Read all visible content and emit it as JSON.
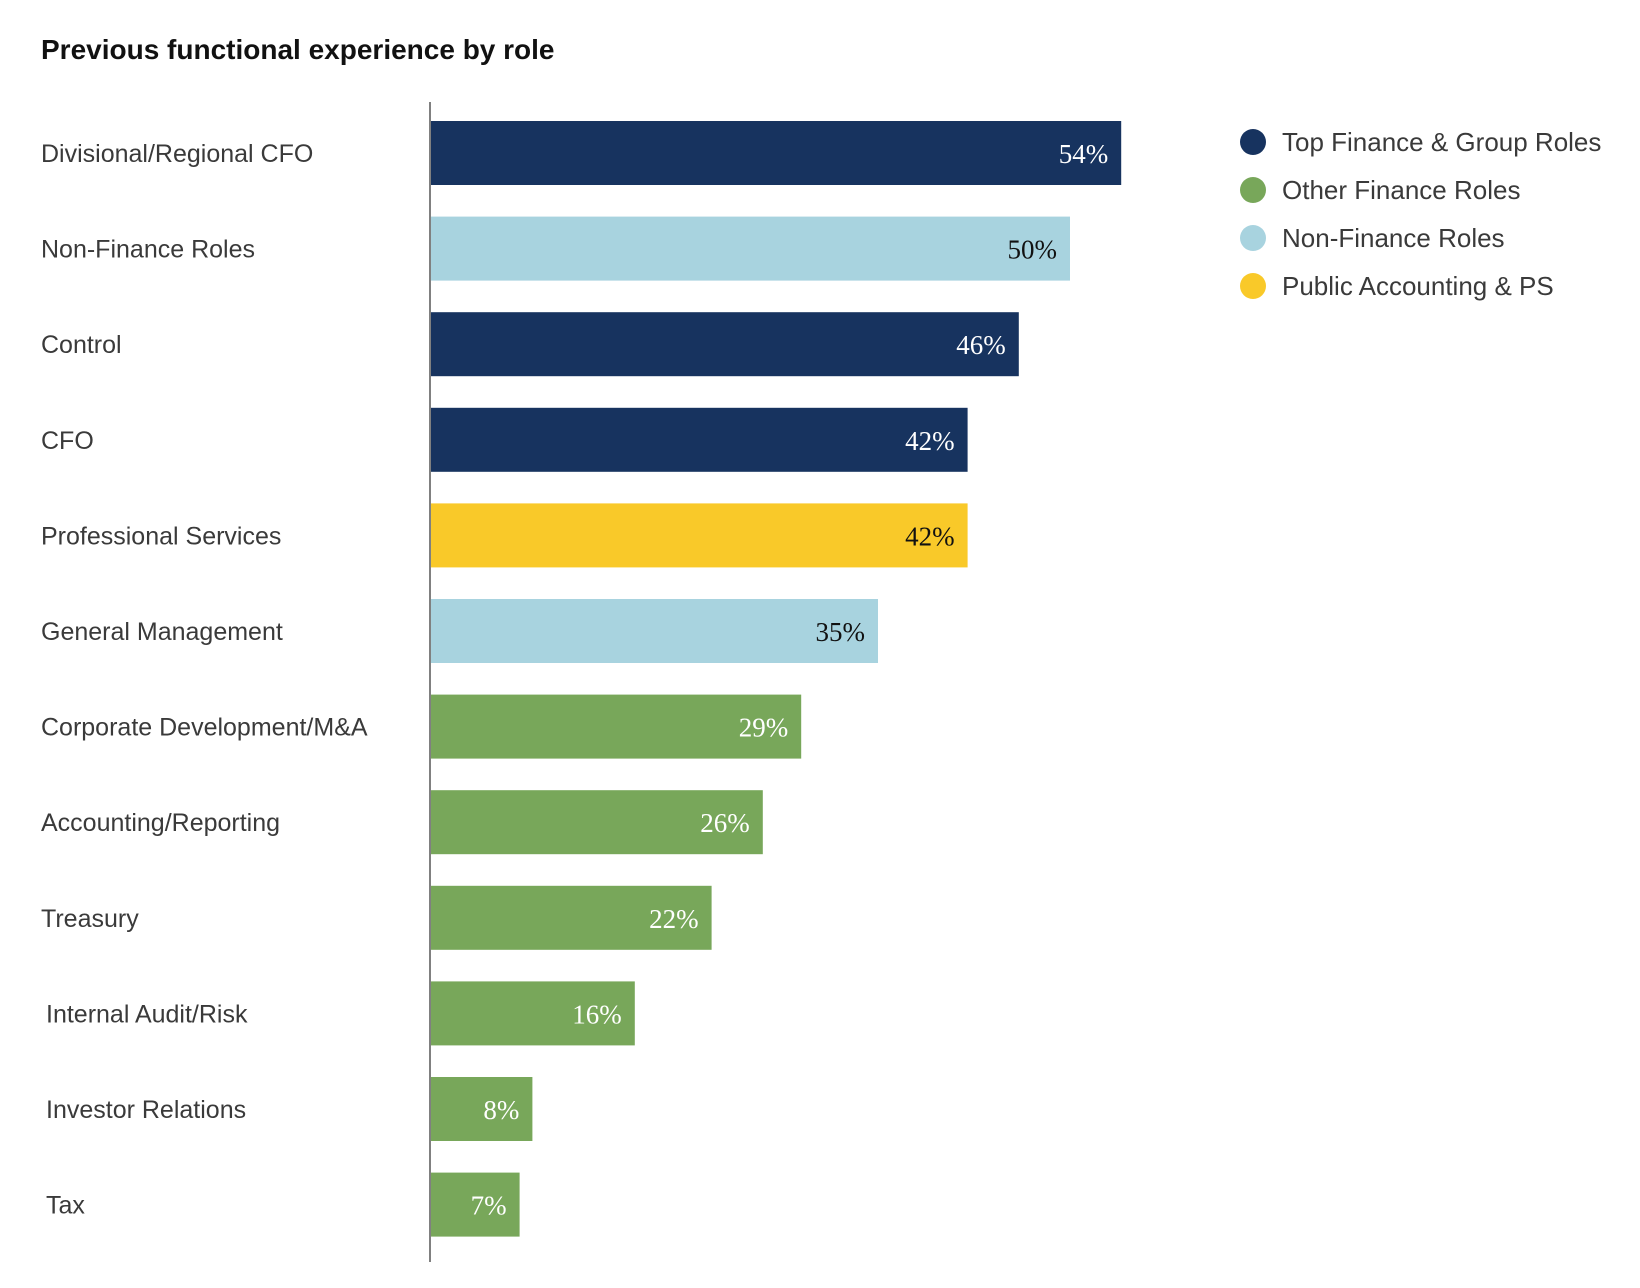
{
  "chart_data": {
    "type": "bar",
    "orientation": "horizontal",
    "title": "Previous functional experience by role",
    "xlabel": "",
    "ylabel": "",
    "xlim": [
      0,
      100
    ],
    "grid": false,
    "legend_position": "top-right",
    "value_suffix": "%",
    "groups": [
      {
        "name": "Top Finance & Group Roles",
        "color": "#17335f",
        "text_color": "#ffffff"
      },
      {
        "name": "Other Finance Roles",
        "color": "#78a75a",
        "text_color": "#ffffff"
      },
      {
        "name": "Non-Finance Roles",
        "color": "#a8d3df",
        "text_color": "#111111"
      },
      {
        "name": "Public Accounting & PS",
        "color": "#f9c929",
        "text_color": "#111111"
      }
    ],
    "categories": [
      "Divisional/Regional CFO",
      "Non-Finance Roles",
      "Control",
      "CFO",
      "Professional Services",
      "General Management",
      "Corporate Development/M&A",
      "Accounting/Reporting",
      "Treasury",
      "Internal Audit/Risk",
      "Investor Relations",
      "Tax"
    ],
    "values": [
      54,
      50,
      46,
      42,
      42,
      35,
      29,
      26,
      22,
      16,
      8,
      7
    ],
    "value_labels": [
      "54%",
      "50%",
      "46%",
      "42%",
      "42%",
      "35%",
      "29%",
      "26%",
      "22%",
      "16%",
      "8%",
      "7%"
    ],
    "category_groups": [
      "Top Finance & Group Roles",
      "Non-Finance Roles",
      "Top Finance & Group Roles",
      "Top Finance & Group Roles",
      "Public Accounting & PS",
      "Non-Finance Roles",
      "Other Finance Roles",
      "Other Finance Roles",
      "Other Finance Roles",
      "Other Finance Roles",
      "Other Finance Roles",
      "Other Finance Roles"
    ]
  }
}
